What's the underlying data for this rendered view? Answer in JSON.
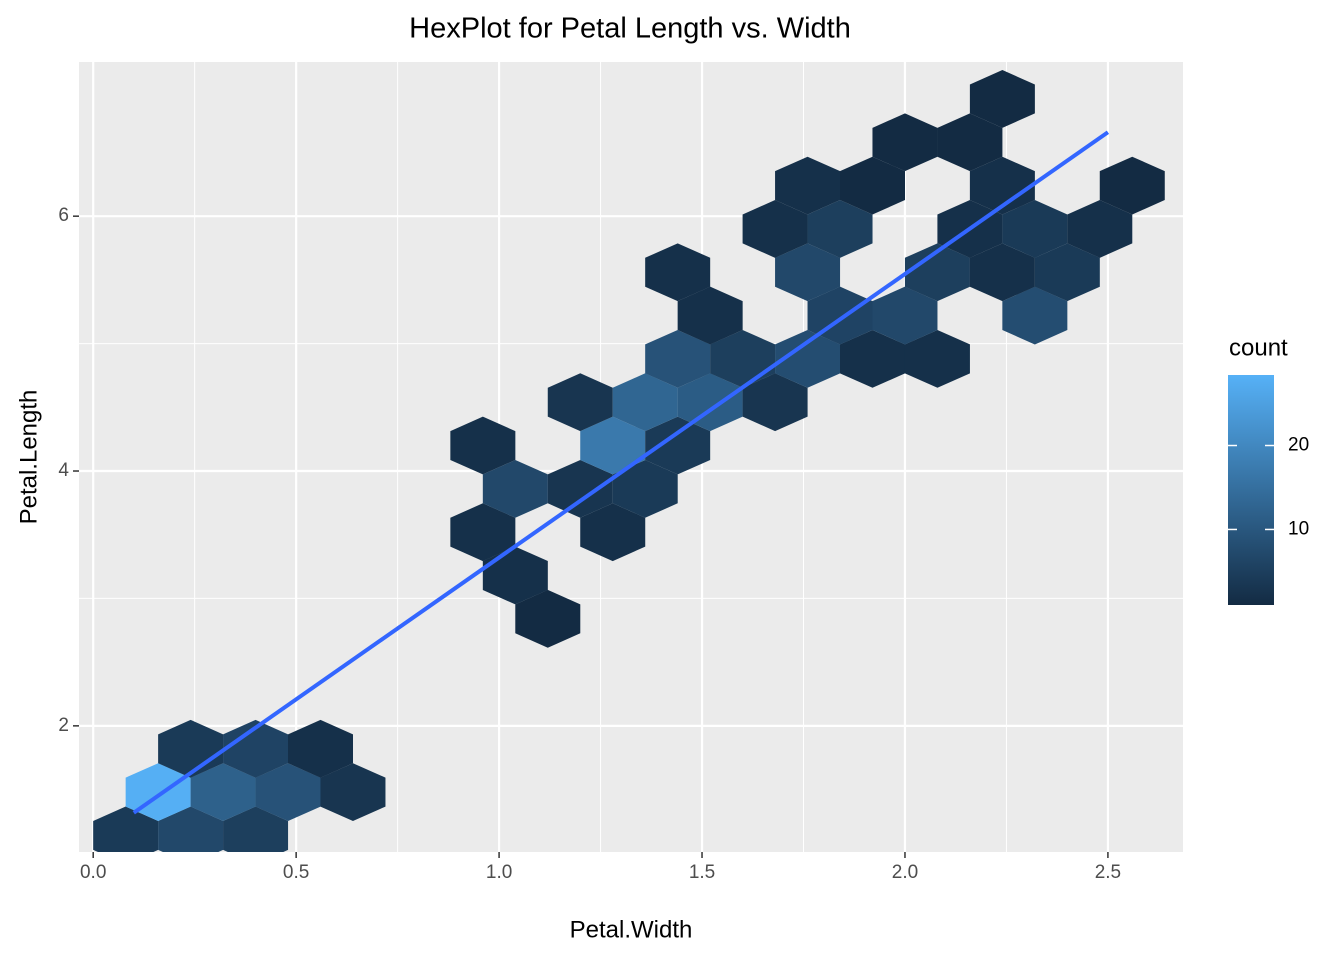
{
  "chart_data": {
    "type": "hexbin",
    "title": "HexPlot for Petal Length vs. Width",
    "x_label": "Petal.Width",
    "y_label": "Petal.Length",
    "x": [
      0.08,
      0.24,
      0.4,
      0.16,
      0.32,
      0.48,
      0.64,
      0.24,
      0.4,
      0.56,
      1.12,
      1.04,
      0.96,
      1.28,
      1.04,
      1.2,
      1.36,
      0.96,
      1.28,
      1.44,
      1.2,
      1.36,
      1.52,
      1.68,
      1.44,
      1.6,
      1.76,
      1.92,
      2.08,
      1.52,
      1.84,
      2.0,
      2.32,
      1.44,
      1.76,
      2.08,
      2.24,
      2.4,
      1.68,
      1.84,
      2.16,
      2.32,
      2.48,
      1.76,
      1.92,
      2.24,
      2.56,
      2.0,
      2.16,
      2.24
    ],
    "y": [
      1.14,
      1.14,
      1.14,
      1.48,
      1.48,
      1.48,
      1.48,
      1.82,
      1.82,
      1.82,
      2.84,
      3.18,
      3.52,
      3.52,
      3.86,
      3.86,
      3.86,
      4.2,
      4.2,
      4.2,
      4.54,
      4.54,
      4.54,
      4.54,
      4.88,
      4.88,
      4.88,
      4.88,
      4.88,
      5.22,
      5.22,
      5.22,
      5.22,
      5.56,
      5.56,
      5.56,
      5.56,
      5.56,
      5.9,
      5.9,
      5.9,
      5.9,
      5.9,
      6.24,
      6.24,
      6.24,
      6.24,
      6.58,
      6.58,
      6.92
    ],
    "values": [
      4,
      7,
      5,
      28,
      12,
      9,
      3,
      4,
      6,
      2,
      1,
      2,
      2,
      2,
      7,
      3,
      4,
      2,
      17,
      4,
      3,
      13,
      11,
      3,
      9,
      5,
      8,
      2,
      2,
      2,
      6,
      7,
      8,
      2,
      7,
      5,
      2,
      4,
      2,
      5,
      2,
      4,
      2,
      2,
      1,
      2,
      1,
      1,
      1,
      1
    ],
    "smooth": {
      "x": [
        0.1,
        2.5
      ],
      "y": [
        1.318,
        6.659
      ],
      "color": "#3366ff"
    },
    "xlim": [
      -0.035,
      2.685
    ],
    "ylim": [
      1.01,
      7.21
    ],
    "xticks": [
      {
        "value": 0,
        "label": "0.0"
      },
      0.5,
      {
        "value": 1,
        "label": "1.0"
      },
      1.5,
      {
        "value": 2,
        "label": "2.0"
      },
      2.5
    ],
    "yticks": [
      2,
      4,
      6
    ],
    "grid": true,
    "legend": {
      "title": "count",
      "position": "right",
      "lim": [
        1,
        28.4
      ],
      "ticks": [
        10,
        20
      ],
      "low_color": "#132b43",
      "high_color": "#56b1f7"
    }
  }
}
